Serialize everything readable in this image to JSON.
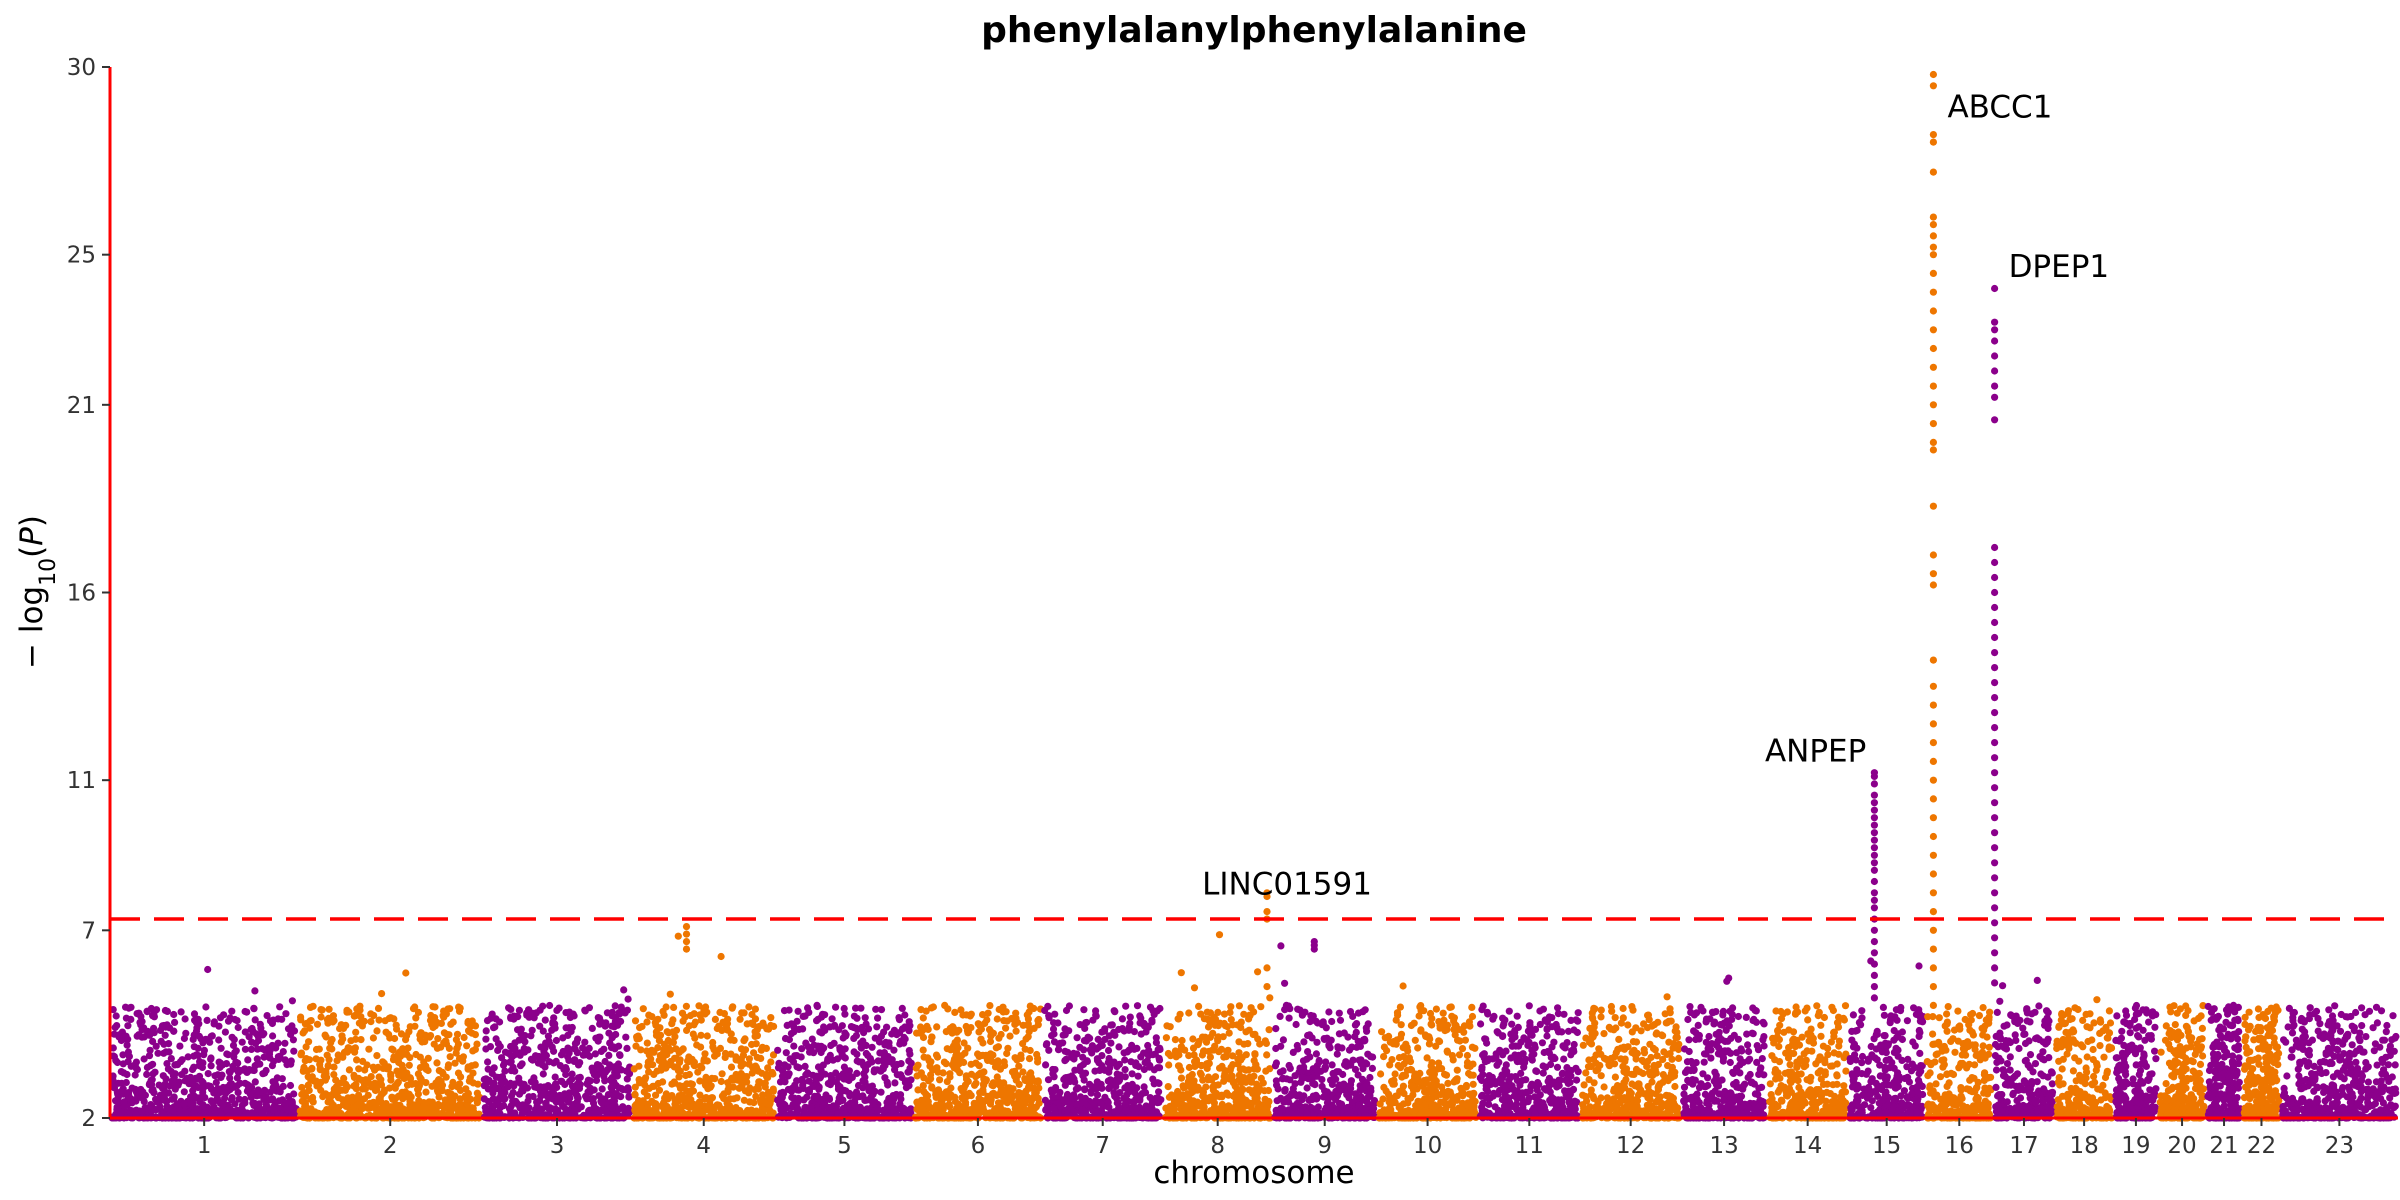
{
  "chart_data": {
    "type": "scatter",
    "subtype": "manhattan",
    "title": "phenylalanylphenylalanine",
    "xlabel": "chromosome",
    "ylabel": "−log10(P)",
    "ylim": [
      2,
      30
    ],
    "yticks": [
      2,
      7,
      11,
      16,
      21,
      25,
      30
    ],
    "colors": {
      "odd": "#8B008B",
      "even": "#EE7600",
      "axis": "#FF0000",
      "threshold": "#FF0000"
    },
    "threshold": 7.3,
    "threshold_style": "dashed",
    "grid": false,
    "chromosomes": [
      {
        "label": "1",
        "length": 249,
        "max": 6.3
      },
      {
        "label": "2",
        "length": 243,
        "max": 7.4
      },
      {
        "label": "3",
        "length": 198,
        "max": 5.9
      },
      {
        "label": "4",
        "length": 190,
        "max": 7.1
      },
      {
        "label": "5",
        "length": 182,
        "max": 5.8
      },
      {
        "label": "6",
        "length": 171,
        "max": 5.5
      },
      {
        "label": "7",
        "length": 159,
        "max": 5.8
      },
      {
        "label": "8",
        "length": 145,
        "max": 8.0
      },
      {
        "label": "9",
        "length": 138,
        "max": 6.7
      },
      {
        "label": "10",
        "length": 134,
        "max": 5.9
      },
      {
        "label": "11",
        "length": 135,
        "max": 5.1
      },
      {
        "label": "12",
        "length": 133,
        "max": 5.8
      },
      {
        "label": "13",
        "length": 114,
        "max": 6.4
      },
      {
        "label": "14",
        "length": 107,
        "max": 5.8
      },
      {
        "label": "15",
        "length": 102,
        "max": 11.2
      },
      {
        "label": "16",
        "length": 90,
        "max": 29.8
      },
      {
        "label": "17",
        "length": 81,
        "max": 24.1
      },
      {
        "label": "18",
        "length": 78,
        "max": 5.6
      },
      {
        "label": "19",
        "length": 59,
        "max": 7.5
      },
      {
        "label": "20",
        "length": 63,
        "max": 5.6
      },
      {
        "label": "21",
        "length": 48,
        "max": 4.8
      },
      {
        "label": "22",
        "length": 51,
        "max": 4.9
      },
      {
        "label": "23",
        "length": 155,
        "max": 4.7
      }
    ],
    "peaks": [
      {
        "chrom": "8",
        "pos": 0.95,
        "values": [
          7.3,
          7.5,
          8.0,
          7.9,
          6.0,
          5.5
        ]
      },
      {
        "chrom": "15",
        "pos": 0.34,
        "values": [
          11.2,
          11.1,
          10.9,
          10.6,
          10.4,
          10.2,
          10.0,
          9.8,
          9.6,
          9.4,
          9.2,
          9.0,
          8.8,
          8.6,
          8.3,
          8.0,
          7.8,
          7.6,
          7.3,
          7.0,
          6.7,
          6.4,
          6.1,
          5.8,
          5.5,
          5.2
        ]
      },
      {
        "chrom": "16",
        "pos": 0.12,
        "values": [
          29.8,
          29.5,
          28.2,
          28.0,
          27.2,
          26.0,
          25.8,
          25.5,
          25.2,
          25.0,
          24.5,
          24.0,
          23.5,
          23.0,
          22.5,
          22.0,
          21.5,
          21.0,
          20.5,
          20.0,
          19.8,
          18.3,
          17.0,
          16.5,
          16.2,
          14.2,
          13.5,
          13.0,
          12.5,
          12.0,
          11.5,
          11.0,
          10.5,
          10.0,
          9.5,
          9.0,
          8.5,
          8.0,
          7.5,
          7.0,
          6.5,
          6.0,
          5.5,
          5.0
        ]
      },
      {
        "chrom": "17",
        "pos": 0.02,
        "values": [
          24.1,
          23.2,
          23.0,
          22.7,
          22.3,
          21.9,
          21.5,
          21.2,
          20.6,
          17.2,
          16.8,
          16.4,
          16.0,
          15.6,
          15.2,
          14.8,
          14.4,
          14.0,
          13.6,
          13.2,
          12.8,
          12.4,
          12.0,
          11.6,
          11.2,
          10.8,
          10.4,
          10.0,
          9.6,
          9.2,
          8.8,
          8.4,
          8.0,
          7.6,
          7.2,
          6.8,
          6.4,
          6.0,
          5.6
        ]
      },
      {
        "chrom": "4",
        "pos": 0.38,
        "values": [
          7.1,
          6.9,
          6.7,
          6.5
        ]
      },
      {
        "chrom": "9",
        "pos": 0.4,
        "values": [
          6.7,
          6.6,
          6.5
        ]
      }
    ],
    "annotations": [
      {
        "text": "LINC01591",
        "chrom": "8",
        "pos": 0.95,
        "y": 7.95
      },
      {
        "text": "ANPEP",
        "chrom": "15",
        "pos": 0.34,
        "y": 11.5
      },
      {
        "text": "ABCC1",
        "chrom": "16",
        "pos": 0.12,
        "y": 28.65
      },
      {
        "text": "DPEP1",
        "chrom": "17",
        "pos": 0.02,
        "y": 24.4
      }
    ]
  }
}
